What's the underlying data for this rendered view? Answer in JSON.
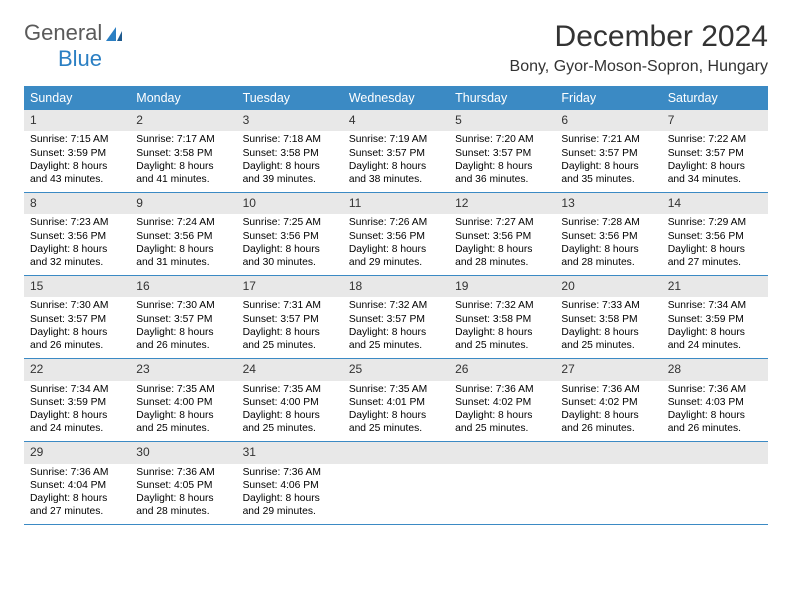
{
  "logo": {
    "part1": "General",
    "part2": "Blue"
  },
  "title": "December 2024",
  "location": "Bony, Gyor-Moson-Sopron, Hungary",
  "colors": {
    "header_bg": "#3b8ac4",
    "header_text": "#ffffff",
    "daynum_bg": "#e8e8e8",
    "week_border": "#3b8ac4",
    "logo_gray": "#5a5a5a",
    "logo_blue": "#2b7fc3"
  },
  "daysOfWeek": [
    "Sunday",
    "Monday",
    "Tuesday",
    "Wednesday",
    "Thursday",
    "Friday",
    "Saturday"
  ],
  "weeks": [
    [
      {
        "n": "1",
        "sr": "Sunrise: 7:15 AM",
        "ss": "Sunset: 3:59 PM",
        "d1": "Daylight: 8 hours",
        "d2": "and 43 minutes."
      },
      {
        "n": "2",
        "sr": "Sunrise: 7:17 AM",
        "ss": "Sunset: 3:58 PM",
        "d1": "Daylight: 8 hours",
        "d2": "and 41 minutes."
      },
      {
        "n": "3",
        "sr": "Sunrise: 7:18 AM",
        "ss": "Sunset: 3:58 PM",
        "d1": "Daylight: 8 hours",
        "d2": "and 39 minutes."
      },
      {
        "n": "4",
        "sr": "Sunrise: 7:19 AM",
        "ss": "Sunset: 3:57 PM",
        "d1": "Daylight: 8 hours",
        "d2": "and 38 minutes."
      },
      {
        "n": "5",
        "sr": "Sunrise: 7:20 AM",
        "ss": "Sunset: 3:57 PM",
        "d1": "Daylight: 8 hours",
        "d2": "and 36 minutes."
      },
      {
        "n": "6",
        "sr": "Sunrise: 7:21 AM",
        "ss": "Sunset: 3:57 PM",
        "d1": "Daylight: 8 hours",
        "d2": "and 35 minutes."
      },
      {
        "n": "7",
        "sr": "Sunrise: 7:22 AM",
        "ss": "Sunset: 3:57 PM",
        "d1": "Daylight: 8 hours",
        "d2": "and 34 minutes."
      }
    ],
    [
      {
        "n": "8",
        "sr": "Sunrise: 7:23 AM",
        "ss": "Sunset: 3:56 PM",
        "d1": "Daylight: 8 hours",
        "d2": "and 32 minutes."
      },
      {
        "n": "9",
        "sr": "Sunrise: 7:24 AM",
        "ss": "Sunset: 3:56 PM",
        "d1": "Daylight: 8 hours",
        "d2": "and 31 minutes."
      },
      {
        "n": "10",
        "sr": "Sunrise: 7:25 AM",
        "ss": "Sunset: 3:56 PM",
        "d1": "Daylight: 8 hours",
        "d2": "and 30 minutes."
      },
      {
        "n": "11",
        "sr": "Sunrise: 7:26 AM",
        "ss": "Sunset: 3:56 PM",
        "d1": "Daylight: 8 hours",
        "d2": "and 29 minutes."
      },
      {
        "n": "12",
        "sr": "Sunrise: 7:27 AM",
        "ss": "Sunset: 3:56 PM",
        "d1": "Daylight: 8 hours",
        "d2": "and 28 minutes."
      },
      {
        "n": "13",
        "sr": "Sunrise: 7:28 AM",
        "ss": "Sunset: 3:56 PM",
        "d1": "Daylight: 8 hours",
        "d2": "and 28 minutes."
      },
      {
        "n": "14",
        "sr": "Sunrise: 7:29 AM",
        "ss": "Sunset: 3:56 PM",
        "d1": "Daylight: 8 hours",
        "d2": "and 27 minutes."
      }
    ],
    [
      {
        "n": "15",
        "sr": "Sunrise: 7:30 AM",
        "ss": "Sunset: 3:57 PM",
        "d1": "Daylight: 8 hours",
        "d2": "and 26 minutes."
      },
      {
        "n": "16",
        "sr": "Sunrise: 7:30 AM",
        "ss": "Sunset: 3:57 PM",
        "d1": "Daylight: 8 hours",
        "d2": "and 26 minutes."
      },
      {
        "n": "17",
        "sr": "Sunrise: 7:31 AM",
        "ss": "Sunset: 3:57 PM",
        "d1": "Daylight: 8 hours",
        "d2": "and 25 minutes."
      },
      {
        "n": "18",
        "sr": "Sunrise: 7:32 AM",
        "ss": "Sunset: 3:57 PM",
        "d1": "Daylight: 8 hours",
        "d2": "and 25 minutes."
      },
      {
        "n": "19",
        "sr": "Sunrise: 7:32 AM",
        "ss": "Sunset: 3:58 PM",
        "d1": "Daylight: 8 hours",
        "d2": "and 25 minutes."
      },
      {
        "n": "20",
        "sr": "Sunrise: 7:33 AM",
        "ss": "Sunset: 3:58 PM",
        "d1": "Daylight: 8 hours",
        "d2": "and 25 minutes."
      },
      {
        "n": "21",
        "sr": "Sunrise: 7:34 AM",
        "ss": "Sunset: 3:59 PM",
        "d1": "Daylight: 8 hours",
        "d2": "and 24 minutes."
      }
    ],
    [
      {
        "n": "22",
        "sr": "Sunrise: 7:34 AM",
        "ss": "Sunset: 3:59 PM",
        "d1": "Daylight: 8 hours",
        "d2": "and 24 minutes."
      },
      {
        "n": "23",
        "sr": "Sunrise: 7:35 AM",
        "ss": "Sunset: 4:00 PM",
        "d1": "Daylight: 8 hours",
        "d2": "and 25 minutes."
      },
      {
        "n": "24",
        "sr": "Sunrise: 7:35 AM",
        "ss": "Sunset: 4:00 PM",
        "d1": "Daylight: 8 hours",
        "d2": "and 25 minutes."
      },
      {
        "n": "25",
        "sr": "Sunrise: 7:35 AM",
        "ss": "Sunset: 4:01 PM",
        "d1": "Daylight: 8 hours",
        "d2": "and 25 minutes."
      },
      {
        "n": "26",
        "sr": "Sunrise: 7:36 AM",
        "ss": "Sunset: 4:02 PM",
        "d1": "Daylight: 8 hours",
        "d2": "and 25 minutes."
      },
      {
        "n": "27",
        "sr": "Sunrise: 7:36 AM",
        "ss": "Sunset: 4:02 PM",
        "d1": "Daylight: 8 hours",
        "d2": "and 26 minutes."
      },
      {
        "n": "28",
        "sr": "Sunrise: 7:36 AM",
        "ss": "Sunset: 4:03 PM",
        "d1": "Daylight: 8 hours",
        "d2": "and 26 minutes."
      }
    ],
    [
      {
        "n": "29",
        "sr": "Sunrise: 7:36 AM",
        "ss": "Sunset: 4:04 PM",
        "d1": "Daylight: 8 hours",
        "d2": "and 27 minutes."
      },
      {
        "n": "30",
        "sr": "Sunrise: 7:36 AM",
        "ss": "Sunset: 4:05 PM",
        "d1": "Daylight: 8 hours",
        "d2": "and 28 minutes."
      },
      {
        "n": "31",
        "sr": "Sunrise: 7:36 AM",
        "ss": "Sunset: 4:06 PM",
        "d1": "Daylight: 8 hours",
        "d2": "and 29 minutes."
      },
      {
        "empty": true
      },
      {
        "empty": true
      },
      {
        "empty": true
      },
      {
        "empty": true
      }
    ]
  ]
}
